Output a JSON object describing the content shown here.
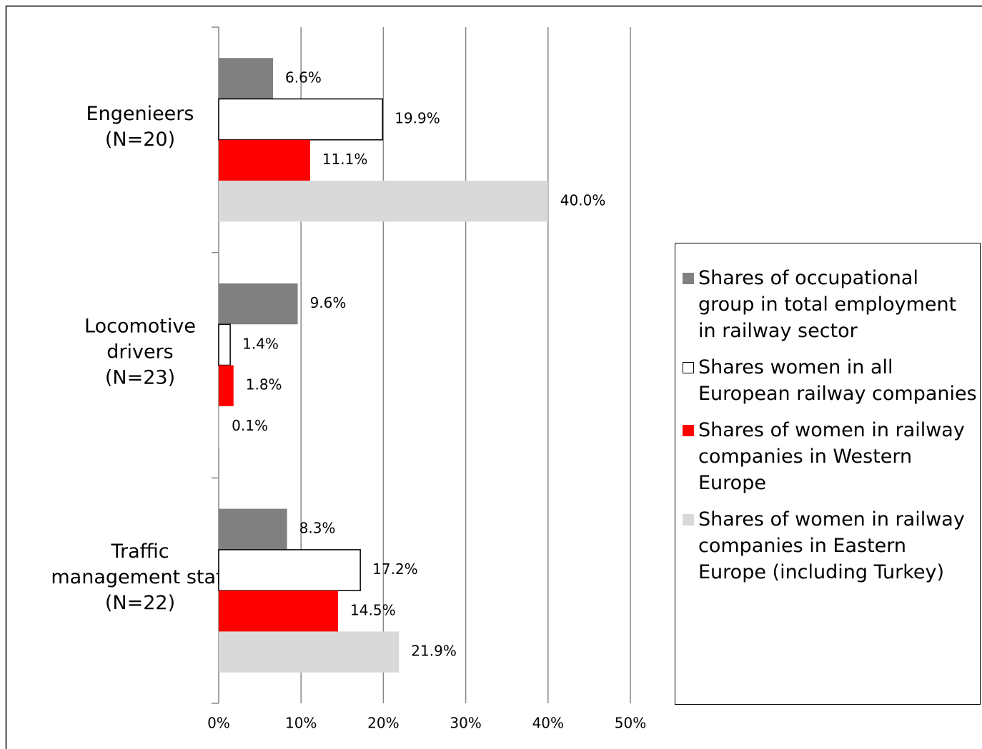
{
  "chart_data": {
    "type": "bar",
    "orientation": "horizontal",
    "categories": [
      [
        "Engenieers",
        "(N=20)"
      ],
      [
        "Locomotive",
        "drivers",
        "(N=23)"
      ],
      [
        "Traffic",
        "management staff",
        "(N=22)"
      ]
    ],
    "series": [
      {
        "name": "Shares of occupational group in total employment in railway sector",
        "color": "#808080",
        "values": [
          6.6,
          9.6,
          8.3
        ],
        "value_labels": [
          "6.6%",
          "9.6%",
          "8.3%"
        ]
      },
      {
        "name": "Shares women in all European railway companies",
        "color": "#ffffff",
        "values": [
          19.9,
          1.4,
          17.2
        ],
        "value_labels": [
          "19.9%",
          "1.4%",
          "17.2%"
        ]
      },
      {
        "name": "Shares of women in railway companies in Western Europe",
        "color": "#ff0000",
        "values": [
          11.1,
          1.8,
          14.5
        ],
        "value_labels": [
          "11.1%",
          "1.8%",
          "14.5%"
        ]
      },
      {
        "name": "Shares of women in railway companies in Eastern Europe (including Turkey)",
        "color": "#d9d9d9",
        "values": [
          40.0,
          0.1,
          21.9
        ],
        "value_labels": [
          "40.0%",
          "0.1%",
          "21.9%"
        ]
      }
    ],
    "xlim": [
      0,
      50
    ],
    "xticks": [
      {
        "value": 0,
        "label": "0%"
      },
      {
        "value": 10,
        "label": "10%"
      },
      {
        "value": 20,
        "label": "20%"
      },
      {
        "value": 30,
        "label": "30%"
      },
      {
        "value": 40,
        "label": "40%"
      },
      {
        "value": 50,
        "label": "50%"
      }
    ],
    "grid": true,
    "legend": "right"
  }
}
